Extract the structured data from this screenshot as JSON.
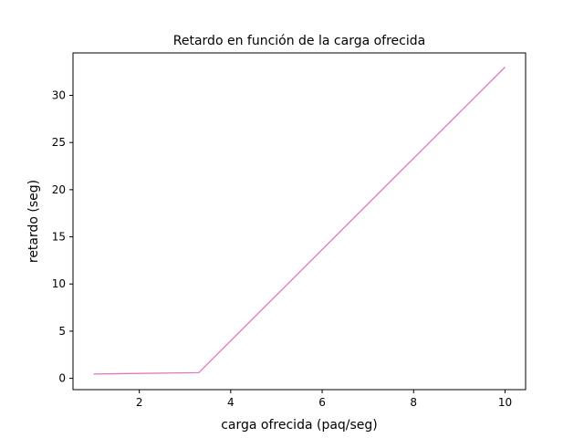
{
  "chart_data": {
    "type": "line",
    "title": "Retardo en función de la carga ofrecida",
    "xlabel": "carga ofrecida (paq/seg)",
    "ylabel": "retardo (seg)",
    "xlim": [
      0.55,
      10.45
    ],
    "ylim": [
      -1.2,
      34.5
    ],
    "xticks": [
      2,
      4,
      6,
      8,
      10
    ],
    "yticks": [
      0,
      5,
      10,
      15,
      20,
      25,
      30
    ],
    "grid": false,
    "series": [
      {
        "color": "#e377c2",
        "x": [
          1.0,
          3.3,
          10.0
        ],
        "y": [
          0.45,
          0.6,
          33.0
        ]
      }
    ]
  }
}
